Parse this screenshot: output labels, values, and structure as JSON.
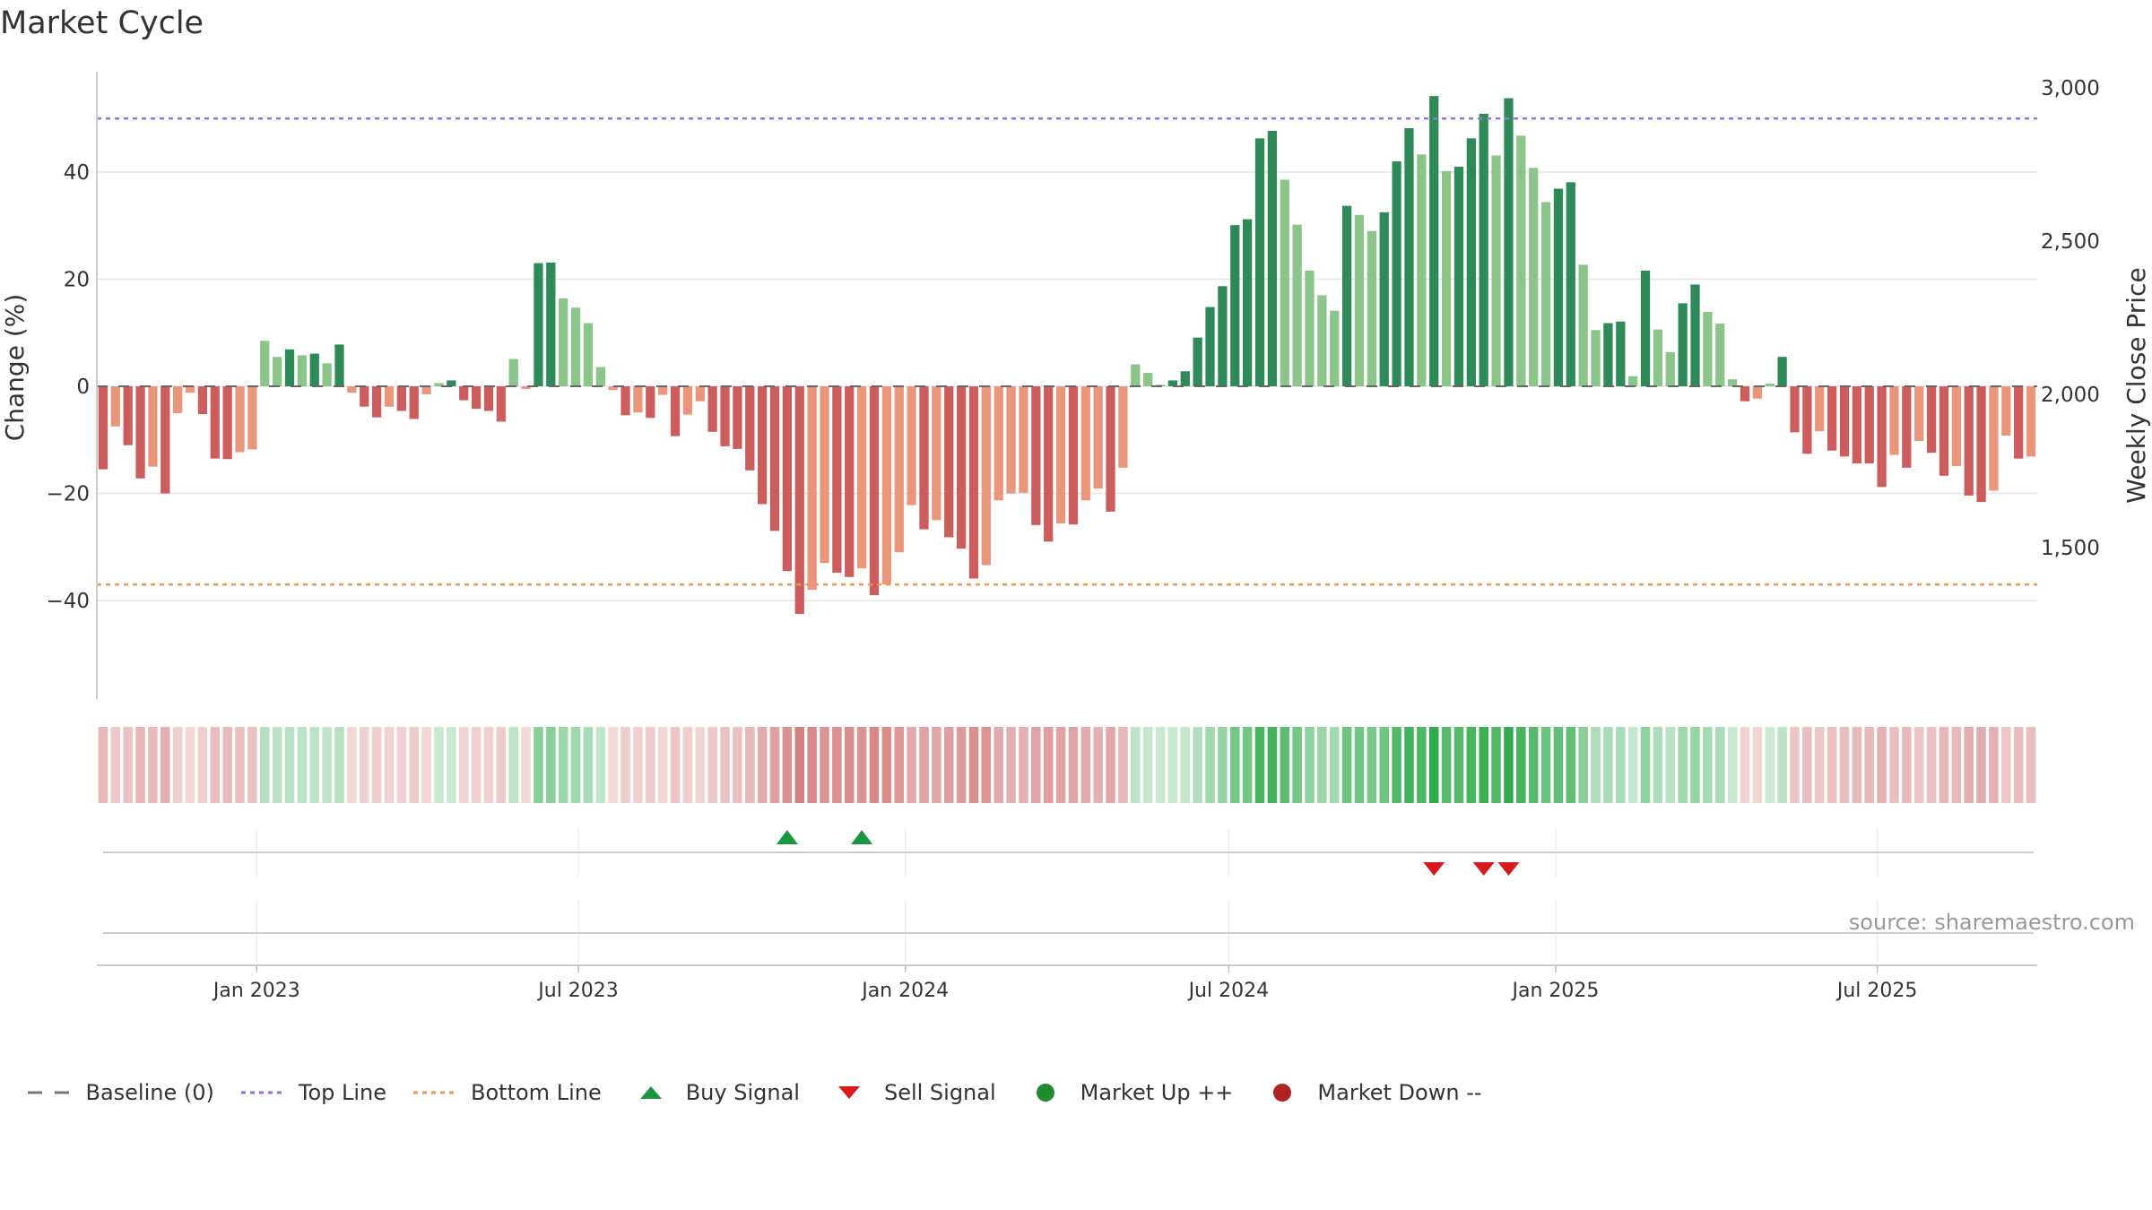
{
  "chart_data": {
    "type": "bar",
    "title": "Market Cycle",
    "ylabel": "Change (%)",
    "y2label": "Weekly Close Price",
    "ylim": [
      -58,
      58
    ],
    "yticks": [
      40,
      20,
      0,
      -20,
      -40
    ],
    "yticklabels": [
      "40",
      "20",
      "0",
      "−20",
      "−40"
    ],
    "y2ticks": [
      3000,
      2500,
      2000,
      1500
    ],
    "y2ticklabels": [
      "3,000",
      "2,500",
      "2,000",
      "1,500"
    ],
    "top_line": 50,
    "bottom_line": -37,
    "baseline": 0,
    "x_start": "2022-10-03",
    "x_end": "2025-09-22",
    "xtick_dates": [
      "2023-01-01",
      "2023-07-01",
      "2024-01-01",
      "2024-07-01",
      "2025-01-01",
      "2025-07-01"
    ],
    "xtick_labels": [
      "Jan 2023",
      "Jul 2023",
      "Jan 2024",
      "Jul 2024",
      "Jan 2025",
      "Jul 2025"
    ],
    "values": [
      -15.5,
      -7.5,
      -11,
      -17.2,
      -15,
      -20,
      -5,
      -1.2,
      -5.2,
      -13.5,
      -13.6,
      -12.3,
      -11.8,
      8.5,
      5.5,
      6.9,
      5.8,
      6.1,
      4.3,
      7.8,
      -1.2,
      -3.8,
      -5.8,
      -3.8,
      -4.6,
      -6.1,
      -1.5,
      0.6,
      1.1,
      -2.6,
      -4.2,
      -4.6,
      -6.6,
      5.1,
      -0.5,
      23,
      23.1,
      16.4,
      14.7,
      11.8,
      3.6,
      -0.7,
      -5.4,
      -4.9,
      -5.9,
      -1.6,
      -9.3,
      -5.3,
      -2.8,
      -8.5,
      -11.2,
      -11.7,
      -15.7,
      -22,
      -27,
      -34.5,
      -42.5,
      -38,
      -33,
      -34.8,
      -35.6,
      -34,
      -39,
      -37,
      -31,
      -22.2,
      -26.7,
      -25,
      -28.2,
      -30.3,
      -35.9,
      -33.4,
      -21.3,
      -20,
      -19.9,
      -25.9,
      -29,
      -25.6,
      -25.8,
      -21.3,
      -19.1,
      -23.4,
      -15.2,
      4.1,
      2.5,
      0.3,
      1.1,
      2.8,
      9.1,
      14.8,
      18.7,
      30.1,
      31.2,
      46.3,
      47.7,
      38.6,
      30.2,
      21.6,
      17,
      14.1,
      33.7,
      32,
      29,
      32.5,
      42,
      48.2,
      43.3,
      54.2,
      40.2,
      41,
      46.3,
      50.9,
      43.1,
      53.8,
      46.8,
      40.8,
      34.4,
      36.9,
      38.1,
      22.7,
      10.5,
      11.8,
      12.1,
      1.9,
      21.6,
      10.6,
      6.4,
      15.5,
      19,
      13.9,
      11.7,
      1.3,
      -2.8,
      -2.3,
      0.5,
      5.5,
      -8.6,
      -12.6,
      -8.4,
      -12,
      -13.1,
      -14.4,
      -14.4,
      -18.8,
      -12.8,
      -15.2,
      -10.2,
      -12.4,
      -16.7,
      -14.9,
      -20.4,
      -21.6,
      -19.5,
      -9.2,
      -13.5,
      -13.1
    ],
    "series_colors": {
      "up_strong": "#2e8b57",
      "up_weak": "#8cc58a",
      "down_strong": "#cd5c5c",
      "down_weak": "#e9967a"
    },
    "heatmap_colors": {
      "down": "#cc6666",
      "up": "#2eaa4a"
    },
    "buy_signals": [
      "2023-10-23",
      "2023-12-04"
    ],
    "sell_signals": [
      "2024-10-21",
      "2024-11-18",
      "2024-12-02"
    ],
    "legend": [
      {
        "label": "Baseline (0)",
        "icon": "dash-line",
        "color": "#777777"
      },
      {
        "label": "Top Line",
        "icon": "dot-line",
        "color": "#9370db"
      },
      {
        "label": "Bottom Line",
        "icon": "dot-line",
        "color": "#e69b50"
      },
      {
        "label": "Buy Signal",
        "icon": "triangle-up",
        "color": "#1a9641"
      },
      {
        "label": "Sell Signal",
        "icon": "triangle-down",
        "color": "#d7191c"
      },
      {
        "label": "Market Up ++",
        "icon": "circle",
        "color": "#1f8b2c"
      },
      {
        "label": "Market Down --",
        "icon": "circle",
        "color": "#b22222"
      }
    ],
    "source": "source: sharemaestro.com",
    "grid": true
  }
}
